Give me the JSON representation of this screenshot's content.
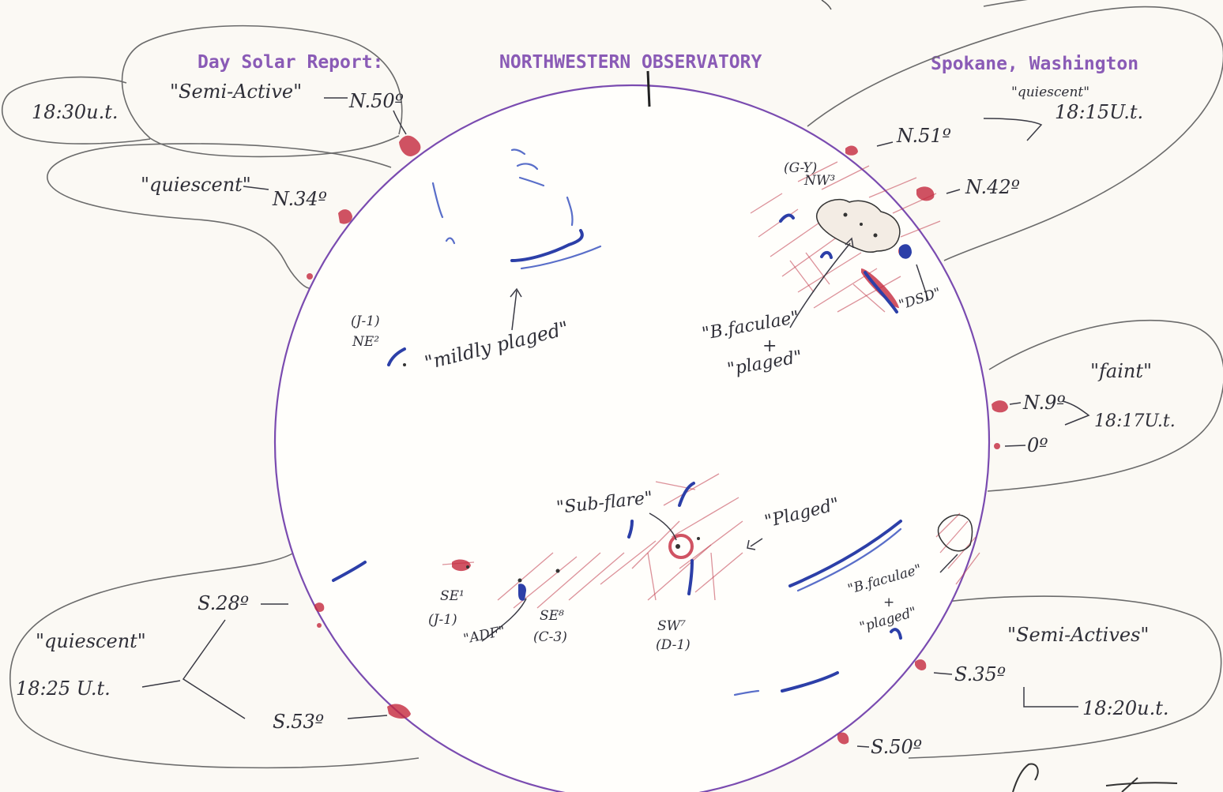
{
  "header": {
    "report_title": "Day Solar Report:",
    "observatory": "NORTHWESTERN OBSERVATORY",
    "location": "Spokane, Washington"
  },
  "limb_groups": {
    "upper_left_1": {
      "time": "18:30u.t.",
      "status": "\"Semi-Active\"",
      "latitude": "N.50º"
    },
    "upper_left_2": {
      "status": "\"quiescent\"",
      "latitude": "N.34º"
    },
    "upper_right": {
      "status": "\"quiescent\"",
      "time": "18:15U.t.",
      "latitudes": [
        "N.51º",
        "N.42º"
      ]
    },
    "mid_right": {
      "status": "\"faint\"",
      "time": "18:17U.t.",
      "latitudes": [
        "N.9º",
        "0º"
      ]
    },
    "lower_right": {
      "status": "\"Semi-Actives\"",
      "time": "18:20u.t.",
      "latitudes": [
        "S.35º",
        "S.50º"
      ]
    },
    "lower_left": {
      "status": "\"quiescent\"",
      "time": "18:25 U.t.",
      "latitudes": [
        "S.28º",
        "S.53º"
      ]
    }
  },
  "disk_labels": {
    "ne_group_code": "(J-1)",
    "ne_group_name": "NE²",
    "mildly_plaged": "\"mildly plaged\"",
    "nw_group_code": "(G-Y)",
    "nw_group_name": "NW³",
    "dsd": "\"DSD\"",
    "bfaculae_n_1": "\"B.faculae\"",
    "bfaculae_n_plus": "+",
    "bfaculae_n_2": "\"plaged\"",
    "sub_flare": "\"Sub-flare\"",
    "plaged_s": "\"Plaged\"",
    "se1_name": "SE¹",
    "se1_code": "(J-1)",
    "adf": "\"ADF\"",
    "se8_name": "SE⁸",
    "se8_code": "(C-3)",
    "sw7_name": "SW⁷",
    "sw7_code": "(D-1)",
    "bfaculae_s_1": "\"B.faculae\"",
    "bfaculae_s_plus": "+",
    "bfaculae_s_2": "\"plaged\""
  }
}
